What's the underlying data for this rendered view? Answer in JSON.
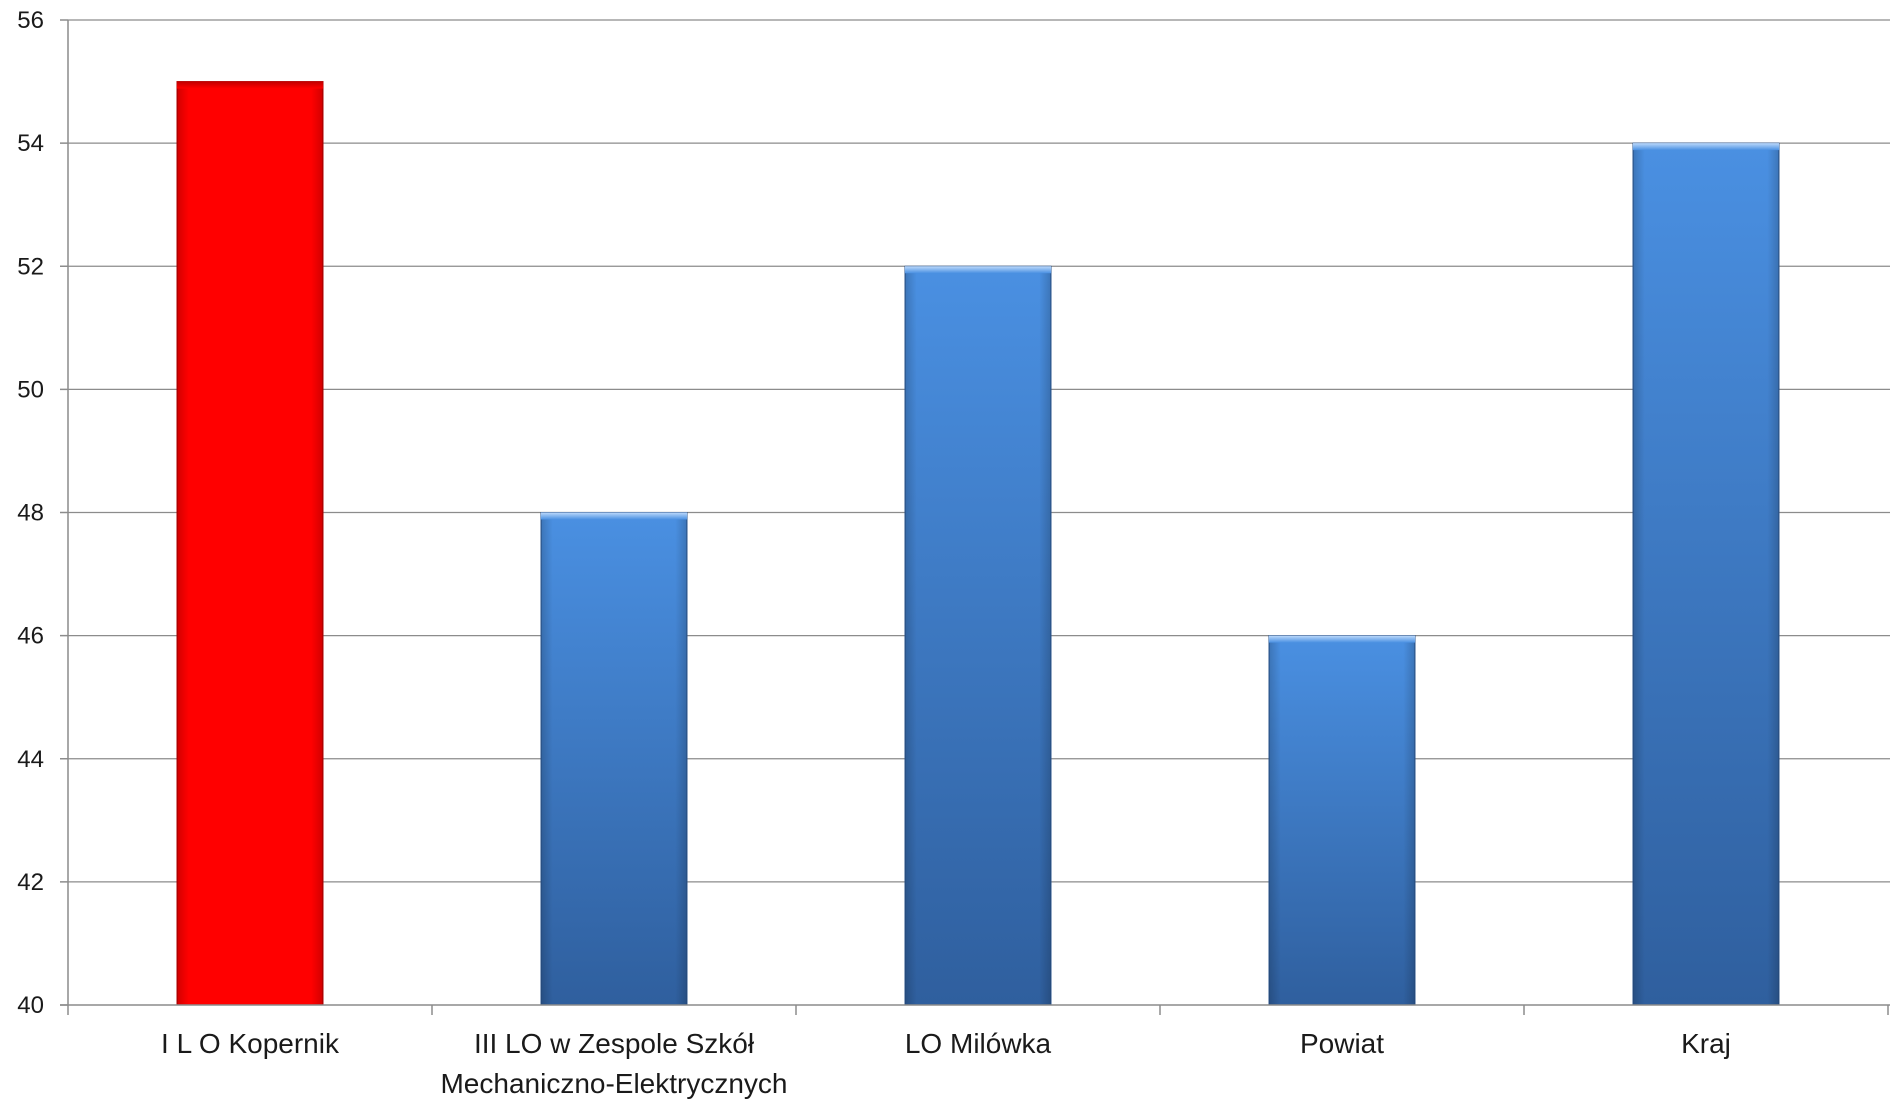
{
  "chart_data": {
    "type": "bar",
    "title": "",
    "xlabel": "",
    "ylabel": "",
    "ylim": [
      40,
      56
    ],
    "yticks": [
      40,
      42,
      44,
      46,
      48,
      50,
      52,
      54,
      56
    ],
    "grid": true,
    "legend": "none",
    "categories": [
      [
        "I L O Kopernik"
      ],
      [
        "III LO w Zespole Szkół",
        "Mechaniczno-Elektrycznych"
      ],
      [
        "LO Milówka"
      ],
      [
        "Powiat"
      ],
      [
        "Kraj"
      ]
    ],
    "values": [
      55,
      48,
      52,
      46,
      54
    ],
    "colors": [
      "#ff0000",
      "#3f7fd3",
      "#3f7fd3",
      "#3f7fd3",
      "#3f7fd3"
    ]
  }
}
